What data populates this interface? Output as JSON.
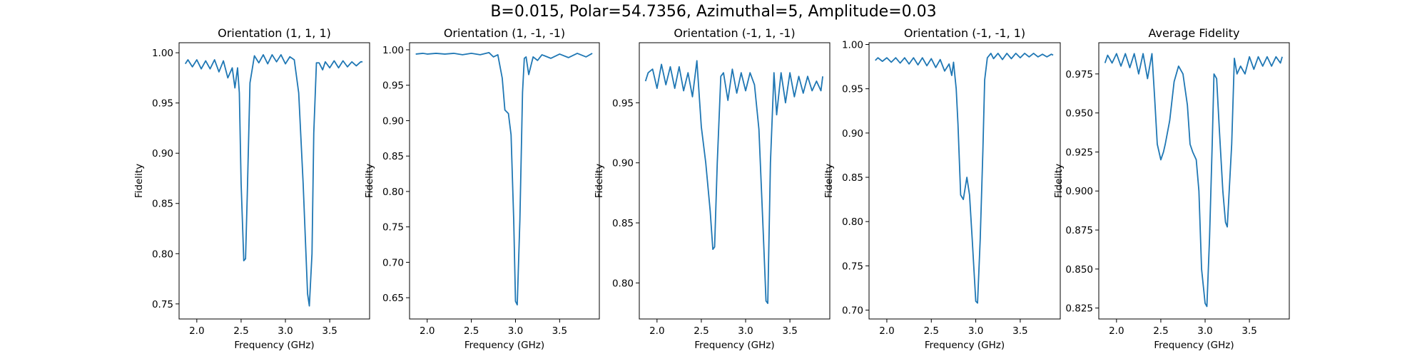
{
  "suptitle": "B=0.015, Polar=54.7356, Azimuthal=5, Amplitude=0.03",
  "line_color": "#1f77b4",
  "chart_data": [
    {
      "type": "line",
      "title": "Orientation (1, 1, 1)",
      "xlabel": "Frequency (GHz)",
      "ylabel": "Fidelity",
      "xlim": [
        1.8,
        3.95
      ],
      "ylim": [
        0.735,
        1.01
      ],
      "xticks": [
        2.0,
        2.5,
        3.0,
        3.5
      ],
      "xtick_labels": [
        "2.0",
        "2.5",
        "3.0",
        "3.5"
      ],
      "yticks": [
        0.75,
        0.8,
        0.85,
        0.9,
        0.95,
        1.0
      ],
      "ytick_labels": [
        "0.75",
        "0.80",
        "0.85",
        "0.90",
        "0.95",
        "1.00"
      ],
      "grid": false,
      "series": [
        {
          "x": [
            1.87,
            1.9,
            1.95,
            2.0,
            2.05,
            2.1,
            2.15,
            2.2,
            2.25,
            2.3,
            2.35,
            2.4,
            2.43,
            2.46,
            2.48,
            2.5,
            2.53,
            2.55,
            2.57,
            2.6,
            2.65,
            2.7,
            2.75,
            2.8,
            2.85,
            2.9,
            2.95,
            3.0,
            3.05,
            3.1,
            3.15,
            3.2,
            3.25,
            3.27,
            3.3,
            3.32,
            3.35,
            3.38,
            3.42,
            3.45,
            3.5,
            3.55,
            3.6,
            3.65,
            3.7,
            3.75,
            3.8,
            3.85,
            3.87
          ],
          "y": [
            0.989,
            0.993,
            0.986,
            0.993,
            0.984,
            0.992,
            0.984,
            0.993,
            0.981,
            0.992,
            0.975,
            0.985,
            0.965,
            0.985,
            0.96,
            0.87,
            0.793,
            0.795,
            0.86,
            0.97,
            0.997,
            0.99,
            0.998,
            0.989,
            0.998,
            0.991,
            0.998,
            0.989,
            0.996,
            0.993,
            0.96,
            0.87,
            0.76,
            0.748,
            0.8,
            0.92,
            0.99,
            0.99,
            0.983,
            0.991,
            0.985,
            0.992,
            0.985,
            0.992,
            0.986,
            0.991,
            0.987,
            0.991,
            0.991
          ]
        }
      ]
    },
    {
      "type": "line",
      "title": "Orientation (1, -1, -1)",
      "xlabel": "Frequency (GHz)",
      "ylabel": "Fidelity",
      "xlim": [
        1.8,
        3.95
      ],
      "ylim": [
        0.62,
        1.01
      ],
      "xticks": [
        2.0,
        2.5,
        3.0,
        3.5
      ],
      "xtick_labels": [
        "2.0",
        "2.5",
        "3.0",
        "3.5"
      ],
      "yticks": [
        0.65,
        0.7,
        0.75,
        0.8,
        0.85,
        0.9,
        0.95,
        1.0
      ],
      "ytick_labels": [
        "0.65",
        "0.70",
        "0.75",
        "0.80",
        "0.85",
        "0.90",
        "0.95",
        "1.00"
      ],
      "grid": false,
      "series": [
        {
          "x": [
            1.87,
            1.95,
            2.0,
            2.1,
            2.2,
            2.3,
            2.4,
            2.5,
            2.6,
            2.7,
            2.75,
            2.8,
            2.85,
            2.88,
            2.92,
            2.95,
            2.98,
            3.0,
            3.02,
            3.05,
            3.08,
            3.1,
            3.12,
            3.15,
            3.2,
            3.25,
            3.3,
            3.4,
            3.5,
            3.6,
            3.7,
            3.8,
            3.87
          ],
          "y": [
            0.994,
            0.995,
            0.994,
            0.995,
            0.994,
            0.995,
            0.993,
            0.995,
            0.993,
            0.996,
            0.99,
            0.993,
            0.96,
            0.915,
            0.91,
            0.88,
            0.76,
            0.645,
            0.64,
            0.76,
            0.94,
            0.988,
            0.99,
            0.965,
            0.99,
            0.985,
            0.993,
            0.988,
            0.994,
            0.989,
            0.995,
            0.99,
            0.995
          ]
        }
      ]
    },
    {
      "type": "line",
      "title": "Orientation (-1, 1, -1)",
      "xlabel": "Frequency (GHz)",
      "ylabel": "Fidelity",
      "xlim": [
        1.8,
        3.95
      ],
      "ylim": [
        0.77,
        1.0
      ],
      "xticks": [
        2.0,
        2.5,
        3.0,
        3.5
      ],
      "xtick_labels": [
        "2.0",
        "2.5",
        "3.0",
        "3.5"
      ],
      "yticks": [
        0.8,
        0.85,
        0.9,
        0.95
      ],
      "ytick_labels": [
        "0.80",
        "0.85",
        "0.90",
        "0.95"
      ],
      "grid": false,
      "series": [
        {
          "x": [
            1.87,
            1.9,
            1.95,
            2.0,
            2.05,
            2.1,
            2.15,
            2.2,
            2.25,
            2.3,
            2.35,
            2.4,
            2.45,
            2.5,
            2.55,
            2.6,
            2.63,
            2.65,
            2.68,
            2.72,
            2.75,
            2.8,
            2.85,
            2.9,
            2.95,
            3.0,
            3.05,
            3.1,
            3.15,
            3.2,
            3.23,
            3.25,
            3.28,
            3.32,
            3.35,
            3.4,
            3.45,
            3.5,
            3.55,
            3.6,
            3.65,
            3.7,
            3.75,
            3.8,
            3.85,
            3.87
          ],
          "y": [
            0.968,
            0.975,
            0.978,
            0.962,
            0.982,
            0.965,
            0.98,
            0.962,
            0.98,
            0.96,
            0.975,
            0.955,
            0.985,
            0.93,
            0.9,
            0.86,
            0.828,
            0.83,
            0.9,
            0.972,
            0.975,
            0.952,
            0.978,
            0.958,
            0.975,
            0.96,
            0.975,
            0.965,
            0.928,
            0.84,
            0.785,
            0.783,
            0.9,
            0.975,
            0.94,
            0.975,
            0.95,
            0.975,
            0.955,
            0.972,
            0.958,
            0.972,
            0.96,
            0.968,
            0.96,
            0.972
          ]
        }
      ]
    },
    {
      "type": "line",
      "title": "Orientation (-1, -1, 1)",
      "xlabel": "Frequency (GHz)",
      "ylabel": "Fidelity",
      "xlim": [
        1.8,
        3.95
      ],
      "ylim": [
        0.69,
        1.002
      ],
      "xticks": [
        2.0,
        2.5,
        3.0,
        3.5
      ],
      "xtick_labels": [
        "2.0",
        "2.5",
        "3.0",
        "3.5"
      ],
      "yticks": [
        0.7,
        0.75,
        0.8,
        0.85,
        0.9,
        0.95,
        1.0
      ],
      "ytick_labels": [
        "0.70",
        "0.75",
        "0.80",
        "0.85",
        "0.90",
        "0.95",
        "1.00"
      ],
      "grid": false,
      "series": [
        {
          "x": [
            1.87,
            1.9,
            1.95,
            2.0,
            2.05,
            2.1,
            2.15,
            2.2,
            2.25,
            2.3,
            2.35,
            2.4,
            2.45,
            2.5,
            2.55,
            2.6,
            2.65,
            2.7,
            2.73,
            2.75,
            2.78,
            2.8,
            2.83,
            2.86,
            2.9,
            2.93,
            2.96,
            3.0,
            3.02,
            3.05,
            3.08,
            3.1,
            3.13,
            3.17,
            3.2,
            3.25,
            3.3,
            3.35,
            3.4,
            3.45,
            3.5,
            3.55,
            3.6,
            3.65,
            3.7,
            3.75,
            3.8,
            3.85,
            3.87
          ],
          "y": [
            0.982,
            0.985,
            0.981,
            0.985,
            0.98,
            0.985,
            0.979,
            0.985,
            0.978,
            0.985,
            0.977,
            0.985,
            0.976,
            0.984,
            0.974,
            0.983,
            0.97,
            0.978,
            0.965,
            0.98,
            0.95,
            0.91,
            0.83,
            0.825,
            0.85,
            0.83,
            0.78,
            0.71,
            0.708,
            0.78,
            0.88,
            0.96,
            0.985,
            0.99,
            0.984,
            0.99,
            0.983,
            0.99,
            0.984,
            0.99,
            0.985,
            0.99,
            0.986,
            0.99,
            0.986,
            0.989,
            0.986,
            0.989,
            0.988
          ]
        }
      ]
    },
    {
      "type": "line",
      "title": "Average Fidelity",
      "xlabel": "Frequency (GHz)",
      "ylabel": "Fidelity",
      "xlim": [
        1.8,
        3.95
      ],
      "ylim": [
        0.818,
        0.995
      ],
      "xticks": [
        2.0,
        2.5,
        3.0,
        3.5
      ],
      "xtick_labels": [
        "2.0",
        "2.5",
        "3.0",
        "3.5"
      ],
      "yticks": [
        0.825,
        0.85,
        0.875,
        0.9,
        0.925,
        0.95,
        0.975
      ],
      "ytick_labels": [
        "0.825",
        "0.850",
        "0.875",
        "0.900",
        "0.925",
        "0.950",
        "0.975"
      ],
      "grid": false,
      "series": [
        {
          "x": [
            1.87,
            1.9,
            1.95,
            2.0,
            2.05,
            2.1,
            2.15,
            2.2,
            2.25,
            2.3,
            2.35,
            2.4,
            2.43,
            2.46,
            2.5,
            2.53,
            2.55,
            2.6,
            2.65,
            2.7,
            2.75,
            2.8,
            2.83,
            2.86,
            2.9,
            2.93,
            2.96,
            3.0,
            3.02,
            3.05,
            3.08,
            3.1,
            3.13,
            3.16,
            3.2,
            3.23,
            3.25,
            3.3,
            3.33,
            3.36,
            3.4,
            3.45,
            3.5,
            3.55,
            3.6,
            3.65,
            3.7,
            3.75,
            3.8,
            3.85,
            3.87
          ],
          "y": [
            0.982,
            0.987,
            0.982,
            0.988,
            0.98,
            0.988,
            0.979,
            0.988,
            0.975,
            0.988,
            0.972,
            0.988,
            0.96,
            0.93,
            0.92,
            0.925,
            0.93,
            0.945,
            0.97,
            0.98,
            0.975,
            0.955,
            0.93,
            0.925,
            0.92,
            0.9,
            0.85,
            0.828,
            0.826,
            0.87,
            0.93,
            0.975,
            0.972,
            0.94,
            0.9,
            0.88,
            0.877,
            0.93,
            0.985,
            0.975,
            0.98,
            0.975,
            0.986,
            0.978,
            0.986,
            0.98,
            0.986,
            0.98,
            0.986,
            0.982,
            0.986
          ]
        }
      ]
    }
  ]
}
